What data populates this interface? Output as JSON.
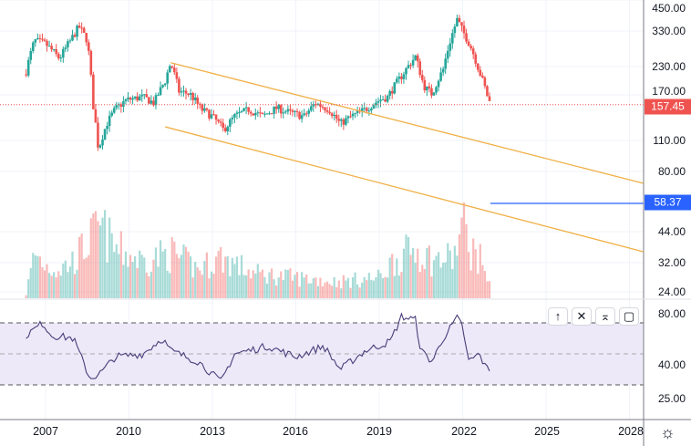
{
  "chart_data": {
    "type": "candlestick",
    "interval": "monthly",
    "price_scale": "log",
    "price_axis_labels": [
      "450.00",
      "330.00",
      "230.00",
      "170.00",
      "110.00",
      "80.00",
      "44.00",
      "32.00",
      "24.00"
    ],
    "last_price": "157.45",
    "horizontal_line_label": "58.37",
    "colors": {
      "up": "#26a69a",
      "down": "#ef5350",
      "trend": "#f0b046",
      "hline": "#2962ff",
      "rsi": "#4a3d7a",
      "rsi_band": "#ede9f8"
    },
    "price_keypoints": [
      [
        2006.3,
        220
      ],
      [
        2006.6,
        300
      ],
      [
        2007.0,
        290
      ],
      [
        2007.5,
        250
      ],
      [
        2007.9,
        300
      ],
      [
        2008.2,
        345
      ],
      [
        2008.5,
        300
      ],
      [
        2008.7,
        160
      ],
      [
        2008.9,
        100
      ],
      [
        2009.2,
        130
      ],
      [
        2009.5,
        150
      ],
      [
        2009.9,
        165
      ],
      [
        2010.5,
        170
      ],
      [
        2010.9,
        160
      ],
      [
        2011.3,
        200
      ],
      [
        2011.5,
        240
      ],
      [
        2011.8,
        180
      ],
      [
        2012.2,
        175
      ],
      [
        2012.6,
        150
      ],
      [
        2013.0,
        140
      ],
      [
        2013.4,
        122
      ],
      [
        2013.8,
        140
      ],
      [
        2014.3,
        150
      ],
      [
        2014.8,
        140
      ],
      [
        2015.3,
        152
      ],
      [
        2015.8,
        145
      ],
      [
        2016.3,
        140
      ],
      [
        2016.7,
        160
      ],
      [
        2017.2,
        150
      ],
      [
        2017.6,
        130
      ],
      [
        2018.0,
        140
      ],
      [
        2018.5,
        150
      ],
      [
        2019.0,
        165
      ],
      [
        2019.3,
        170
      ],
      [
        2019.8,
        210
      ],
      [
        2020.3,
        255
      ],
      [
        2020.6,
        190
      ],
      [
        2020.9,
        175
      ],
      [
        2021.3,
        225
      ],
      [
        2021.8,
        370
      ],
      [
        2022.0,
        330
      ],
      [
        2022.3,
        280
      ],
      [
        2022.6,
        220
      ],
      [
        2022.9,
        170
      ],
      [
        2023.0,
        157.45
      ]
    ],
    "volume_keypoints": [
      [
        2006.3,
        5
      ],
      [
        2006.6,
        55
      ],
      [
        2007.0,
        40
      ],
      [
        2007.5,
        35
      ],
      [
        2008.0,
        45
      ],
      [
        2008.7,
        75
      ],
      [
        2009.0,
        85
      ],
      [
        2009.5,
        60
      ],
      [
        2010.5,
        45
      ],
      [
        2011.5,
        55
      ],
      [
        2012.5,
        35
      ],
      [
        2013.3,
        50
      ],
      [
        2014.5,
        30
      ],
      [
        2016,
        25
      ],
      [
        2017.5,
        20
      ],
      [
        2019,
        25
      ],
      [
        2019.5,
        45
      ],
      [
        2020.3,
        60
      ],
      [
        2021,
        45
      ],
      [
        2021.7,
        50
      ],
      [
        2022.0,
        90
      ],
      [
        2022.3,
        60
      ],
      [
        2022.8,
        40
      ],
      [
        2023.0,
        10
      ]
    ],
    "trend_lines": [
      {
        "from": [
          2011.5,
          240
        ],
        "to": [
          2028.5,
          71.4
        ]
      },
      {
        "from": [
          2011.3,
          126
        ],
        "to": [
          2028.5,
          35.9
        ]
      }
    ],
    "hline": {
      "value": 58.37,
      "from": 2023.0
    },
    "rsi": {
      "axis_labels": [
        "80.00",
        "40.00",
        "25.00"
      ],
      "levels": [
        70,
        50,
        30
      ],
      "keypoints": [
        [
          2006.3,
          62
        ],
        [
          2006.9,
          70
        ],
        [
          2007.2,
          62
        ],
        [
          2008.0,
          60
        ],
        [
          2008.6,
          34
        ],
        [
          2009.0,
          38
        ],
        [
          2009.5,
          48
        ],
        [
          2010.5,
          50
        ],
        [
          2011.2,
          60
        ],
        [
          2011.5,
          52
        ],
        [
          2012.5,
          45
        ],
        [
          2013.3,
          32
        ],
        [
          2013.8,
          50
        ],
        [
          2015,
          55
        ],
        [
          2016,
          48
        ],
        [
          2017,
          55
        ],
        [
          2017.6,
          40
        ],
        [
          2018.5,
          52
        ],
        [
          2019.4,
          58
        ],
        [
          2019.8,
          74
        ],
        [
          2020.3,
          72
        ],
        [
          2020.5,
          52
        ],
        [
          2020.9,
          45
        ],
        [
          2021.3,
          60
        ],
        [
          2021.8,
          73
        ],
        [
          2022.0,
          68
        ],
        [
          2022.2,
          45
        ],
        [
          2022.6,
          50
        ],
        [
          2022.8,
          42
        ],
        [
          2023.0,
          40
        ]
      ]
    },
    "x_ticks": [
      "2007",
      "2010",
      "2013",
      "2016",
      "2019",
      "2022",
      "2025",
      "2028"
    ]
  },
  "pane_buttons": {
    "up": "↑",
    "close": "✕",
    "collapse": "⌅",
    "maximize": "▢"
  },
  "settings_icon": "☼"
}
